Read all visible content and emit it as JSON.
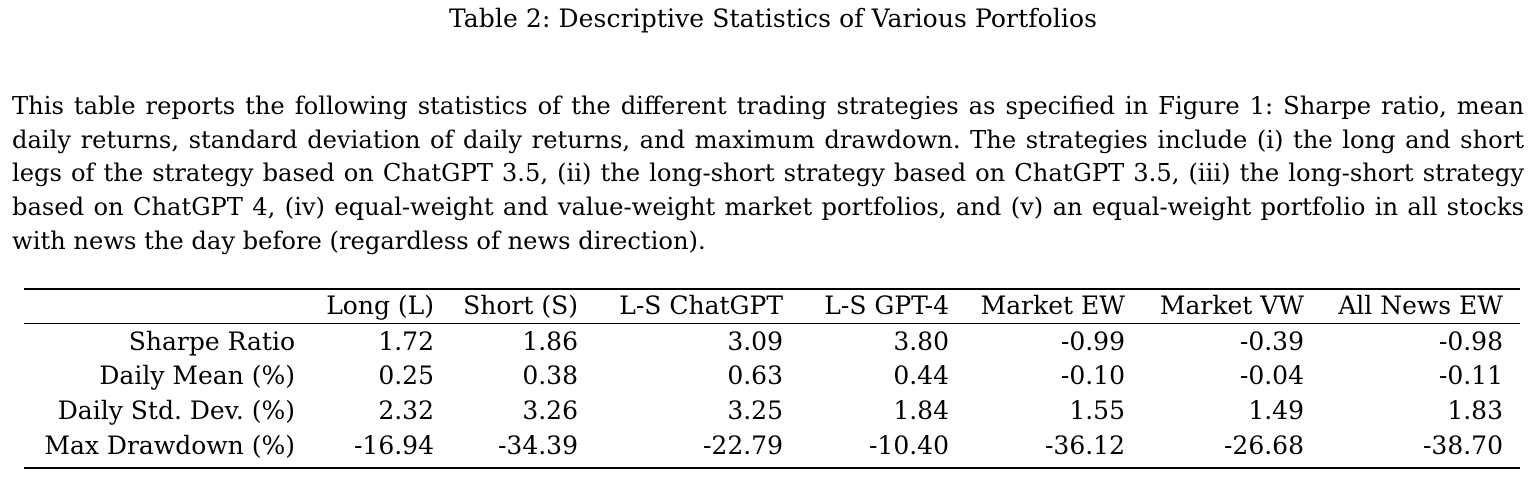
{
  "caption": "Table 2: Descriptive Statistics of Various Portfolios",
  "description": "This table reports the following statistics of the different trading strategies as specified in Figure 1: Sharpe ratio, mean daily returns, standard deviation of daily returns, and maximum drawdown. The strategies include (i) the long and short legs of the strategy based on ChatGPT 3.5, (ii) the long-short strategy based on ChatGPT 3.5, (iii) the long-short strategy based on ChatGPT 4, (iv) equal-weight and value-weight market portfolios, and (v) an equal-weight portfolio in all stocks with news the day before (regardless of news direction).",
  "table": {
    "columns": [
      "Long (L)",
      "Short (S)",
      "L-S ChatGPT",
      "L-S GPT-4",
      "Market EW",
      "Market VW",
      "All News EW"
    ],
    "rows": [
      {
        "label": "Sharpe Ratio",
        "values": [
          "1.72",
          "1.86",
          "3.09",
          "3.80",
          "-0.99",
          "-0.39",
          "-0.98"
        ]
      },
      {
        "label": "Daily Mean (%)",
        "values": [
          "0.25",
          "0.38",
          "0.63",
          "0.44",
          "-0.10",
          "-0.04",
          "-0.11"
        ]
      },
      {
        "label": "Daily Std. Dev. (%)",
        "values": [
          "2.32",
          "3.26",
          "3.25",
          "1.84",
          "1.55",
          "1.49",
          "1.83"
        ]
      },
      {
        "label": "Max Drawdown (%)",
        "values": [
          "-16.94",
          "-34.39",
          "-22.79",
          "-10.40",
          "-36.12",
          "-26.68",
          "-38.70"
        ]
      }
    ]
  }
}
